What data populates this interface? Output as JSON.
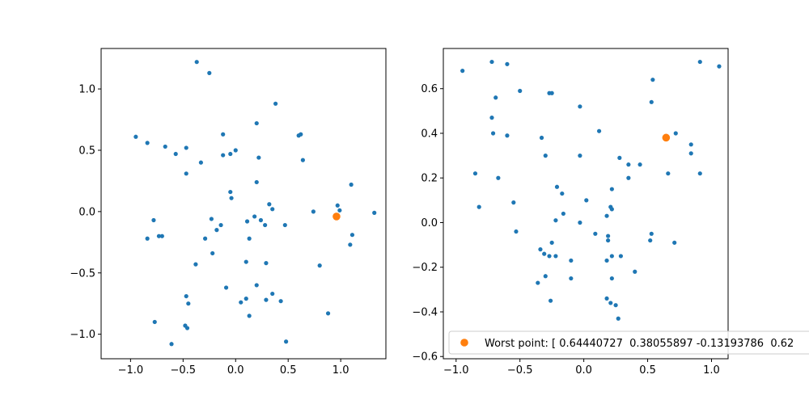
{
  "chart_data": [
    {
      "type": "scatter",
      "xlim": [
        -1.28,
        1.43
      ],
      "ylim": [
        -1.2,
        1.33
      ],
      "xticks": [
        {
          "value": -1.0,
          "label": "−1.0"
        },
        {
          "value": -0.5,
          "label": "−0.5"
        },
        {
          "value": 0.0,
          "label": "0.0"
        },
        {
          "value": 0.5,
          "label": "0.5"
        },
        {
          "value": 1.0,
          "label": "1.0"
        }
      ],
      "yticks": [
        {
          "value": -1.0,
          "label": "−1.0"
        },
        {
          "value": -0.5,
          "label": "−0.5"
        },
        {
          "value": 0.0,
          "label": "0.0"
        },
        {
          "value": 0.5,
          "label": "0.5"
        },
        {
          "value": 1.0,
          "label": "1.0"
        }
      ],
      "grid": false,
      "series": [
        {
          "color": "#1f77b4",
          "marker_size": 2.6,
          "x": [
            -0.37,
            -0.25,
            0.38,
            0.2,
            -0.12,
            0.6,
            0.62,
            -0.95,
            -0.84,
            -0.67,
            -0.47,
            -0.57,
            0.0,
            -0.05,
            -0.12,
            0.22,
            -0.33,
            -0.47,
            0.64,
            0.2,
            -0.05,
            -0.04,
            0.74,
            1.1,
            0.97,
            0.99,
            1.32,
            0.32,
            0.35,
            0.18,
            0.24,
            0.11,
            -0.23,
            -0.7,
            -0.78,
            0.28,
            0.47,
            1.11,
            -0.14,
            -0.18,
            -0.84,
            -0.73,
            0.13,
            1.09,
            -0.29,
            -0.22,
            0.1,
            0.29,
            -0.38,
            -0.09,
            0.8,
            0.2,
            0.35,
            0.05,
            0.29,
            0.1,
            0.43,
            -0.47,
            -0.45,
            0.88,
            -0.77,
            -0.48,
            -0.46,
            0.13,
            -0.61,
            0.48
          ],
          "y": [
            1.22,
            1.13,
            0.88,
            0.72,
            0.63,
            0.62,
            0.63,
            0.61,
            0.56,
            0.53,
            0.52,
            0.47,
            0.5,
            0.47,
            0.46,
            0.44,
            0.4,
            0.31,
            0.42,
            0.24,
            0.16,
            0.11,
            0.0,
            0.22,
            0.05,
            0.01,
            -0.01,
            0.06,
            0.02,
            -0.04,
            -0.07,
            -0.08,
            -0.06,
            -0.2,
            -0.07,
            -0.11,
            -0.11,
            -0.19,
            -0.11,
            -0.15,
            -0.22,
            -0.2,
            -0.22,
            -0.27,
            -0.22,
            -0.34,
            -0.41,
            -0.42,
            -0.43,
            -0.62,
            -0.44,
            -0.6,
            -0.67,
            -0.74,
            -0.72,
            -0.71,
            -0.73,
            -0.69,
            -0.75,
            -0.83,
            -0.9,
            -0.93,
            -0.95,
            -0.85,
            -1.08,
            -1.06
          ]
        },
        {
          "color": "#ff7f0e",
          "marker_size": 4.8,
          "x": [
            0.96
          ],
          "y": [
            -0.04
          ]
        }
      ]
    },
    {
      "type": "scatter",
      "xlim": [
        -1.1,
        1.13
      ],
      "ylim": [
        -0.61,
        0.78
      ],
      "xticks": [
        {
          "value": -1.0,
          "label": "−1.0"
        },
        {
          "value": -0.5,
          "label": "−0.5"
        },
        {
          "value": 0.0,
          "label": "0.0"
        },
        {
          "value": 0.5,
          "label": "0.5"
        },
        {
          "value": 1.0,
          "label": "1.0"
        }
      ],
      "yticks": [
        {
          "value": -0.6,
          "label": "−0.6"
        },
        {
          "value": -0.4,
          "label": "−0.4"
        },
        {
          "value": -0.2,
          "label": "−0.2"
        },
        {
          "value": 0.0,
          "label": "0.0"
        },
        {
          "value": 0.2,
          "label": "0.2"
        },
        {
          "value": 0.4,
          "label": "0.4"
        },
        {
          "value": 0.6,
          "label": "0.6"
        }
      ],
      "grid": false,
      "legend": {
        "placement": "lower-right",
        "label": "Worst point: [ 0.64440727  0.38055897 -0.13193786  0.62"
      },
      "series": [
        {
          "color": "#1f77b4",
          "marker_size": 2.6,
          "x": [
            -0.95,
            -0.72,
            -0.6,
            -0.69,
            -0.5,
            -0.27,
            -0.25,
            -0.03,
            -0.72,
            -0.71,
            -0.6,
            0.12,
            -0.33,
            -0.3,
            -0.03,
            0.53,
            0.54,
            0.91,
            1.06,
            0.72,
            0.84,
            0.84,
            0.91,
            0.66,
            0.28,
            0.44,
            0.35,
            0.35,
            0.22,
            -0.85,
            -0.67,
            -0.21,
            -0.17,
            -0.82,
            -0.55,
            0.02,
            -0.53,
            -0.16,
            -0.22,
            -0.03,
            0.21,
            0.22,
            0.18,
            0.09,
            0.19,
            -0.25,
            -0.34,
            -0.31,
            -0.27,
            -0.22,
            -0.1,
            0.22,
            0.18,
            0.19,
            0.29,
            0.52,
            0.53,
            0.71,
            -0.36,
            -0.3,
            -0.1,
            0.22,
            0.4,
            -0.26,
            0.18,
            0.21,
            0.25,
            0.27
          ],
          "y": [
            0.68,
            0.72,
            0.71,
            0.56,
            0.59,
            0.58,
            0.58,
            0.52,
            0.47,
            0.4,
            0.39,
            0.41,
            0.38,
            0.3,
            0.3,
            0.54,
            0.64,
            0.72,
            0.7,
            0.4,
            0.35,
            0.31,
            0.22,
            0.22,
            0.29,
            0.26,
            0.26,
            0.2,
            0.15,
            0.22,
            0.2,
            0.16,
            0.13,
            0.07,
            0.09,
            0.1,
            -0.04,
            0.04,
            0.01,
            0.0,
            0.07,
            0.06,
            0.03,
            -0.05,
            -0.06,
            -0.09,
            -0.12,
            -0.14,
            -0.15,
            -0.15,
            -0.17,
            -0.15,
            -0.17,
            -0.08,
            -0.15,
            -0.08,
            -0.05,
            -0.09,
            -0.27,
            -0.24,
            -0.25,
            -0.25,
            -0.22,
            -0.35,
            -0.34,
            -0.36,
            -0.37,
            -0.43
          ]
        },
        {
          "color": "#ff7f0e",
          "marker_size": 4.8,
          "x": [
            0.6444
          ],
          "y": [
            0.3806
          ]
        }
      ]
    }
  ]
}
